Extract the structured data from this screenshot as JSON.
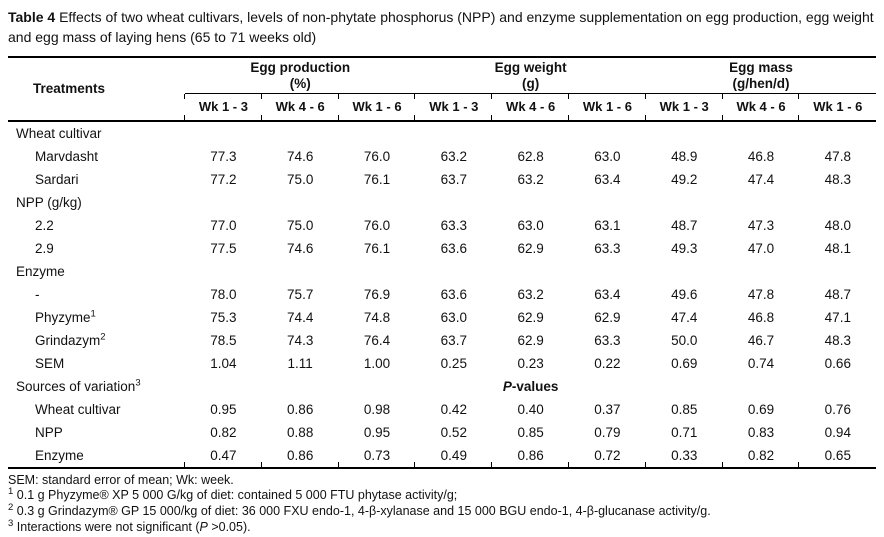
{
  "title": {
    "label": "Table 4",
    "text": " Effects of two wheat cultivars, levels of non-phytate phosphorus (NPP) and enzyme supplementation on egg production, egg weight and egg mass of laying hens (65 to 71 weeks old)"
  },
  "table": {
    "treatments_header": "Treatments",
    "groups": [
      {
        "name": "Egg production",
        "unit": "(%)"
      },
      {
        "name": "Egg weight",
        "unit": "(g)"
      },
      {
        "name": "Egg mass",
        "unit": "(g/hen/d)"
      }
    ],
    "subheaders": [
      "Wk 1 - 3",
      "Wk 4 - 6",
      "Wk 1 - 6",
      "Wk 1 - 3",
      "Wk 4 - 6",
      "Wk 1 - 6",
      "Wk 1 - 3",
      "Wk 4 - 6",
      "Wk 1 - 6"
    ],
    "rows": [
      {
        "type": "group",
        "label": "Wheat cultivar",
        "sup": ""
      },
      {
        "type": "item",
        "label": "Marvdasht",
        "sup": "",
        "values": [
          "77.3",
          "74.6",
          "76.0",
          "63.2",
          "62.8",
          "63.0",
          "48.9",
          "46.8",
          "47.8"
        ]
      },
      {
        "type": "item",
        "label": "Sardari",
        "sup": "",
        "values": [
          "77.2",
          "75.0",
          "76.1",
          "63.7",
          "63.2",
          "63.4",
          "49.2",
          "47.4",
          "48.3"
        ]
      },
      {
        "type": "group",
        "label": "NPP (g/kg)",
        "sup": ""
      },
      {
        "type": "item",
        "label": "2.2",
        "sup": "",
        "values": [
          "77.0",
          "75.0",
          "76.0",
          "63.3",
          "63.0",
          "63.1",
          "48.7",
          "47.3",
          "48.0"
        ]
      },
      {
        "type": "item",
        "label": "2.9",
        "sup": "",
        "values": [
          "77.5",
          "74.6",
          "76.1",
          "63.6",
          "62.9",
          "63.3",
          "49.3",
          "47.0",
          "48.1"
        ]
      },
      {
        "type": "group",
        "label": "Enzyme",
        "sup": ""
      },
      {
        "type": "item",
        "label": "-",
        "sup": "",
        "values": [
          "78.0",
          "75.7",
          "76.9",
          "63.6",
          "63.2",
          "63.4",
          "49.6",
          "47.8",
          "48.7"
        ]
      },
      {
        "type": "item",
        "label": "Phyzyme",
        "sup": "1",
        "values": [
          "75.3",
          "74.4",
          "74.8",
          "63.0",
          "62.9",
          "62.9",
          "47.4",
          "46.8",
          "47.1"
        ]
      },
      {
        "type": "item",
        "label": "Grindazym",
        "sup": "2",
        "values": [
          "78.5",
          "74.3",
          "76.4",
          "63.7",
          "62.9",
          "63.3",
          "50.0",
          "46.7",
          "48.3"
        ]
      },
      {
        "type": "item",
        "label": "SEM",
        "sup": "",
        "values": [
          "1.04",
          "1.11",
          "1.00",
          "0.25",
          "0.23",
          "0.22",
          "0.69",
          "0.74",
          "0.66"
        ]
      },
      {
        "type": "sources",
        "label": "Sources of variation",
        "sup": "3",
        "banner": [
          {
            "style": "bolditalic",
            "text": "P"
          },
          {
            "style": "bold",
            "text": "-values"
          }
        ]
      },
      {
        "type": "item",
        "label": "Wheat cultivar",
        "sup": "",
        "values": [
          "0.95",
          "0.86",
          "0.98",
          "0.42",
          "0.40",
          "0.37",
          "0.85",
          "0.69",
          "0.76"
        ]
      },
      {
        "type": "item",
        "label": "NPP",
        "sup": "",
        "values": [
          "0.82",
          "0.88",
          "0.95",
          "0.52",
          "0.85",
          "0.79",
          "0.71",
          "0.83",
          "0.94"
        ]
      },
      {
        "type": "item",
        "label": "Enzyme",
        "sup": "",
        "values": [
          "0.47",
          "0.86",
          "0.73",
          "0.49",
          "0.86",
          "0.72",
          "0.33",
          "0.82",
          "0.65"
        ]
      }
    ]
  },
  "footnotes": [
    {
      "sup": "",
      "segments": [
        {
          "style": "normal",
          "text": "SEM: standard error of mean; Wk: week."
        }
      ]
    },
    {
      "sup": "1",
      "segments": [
        {
          "style": "normal",
          "text": "0.1 g Phyzyme® XP 5 000 G/kg of diet: contained 5 000 FTU phytase activity/g;"
        }
      ]
    },
    {
      "sup": "2",
      "segments": [
        {
          "style": "normal",
          "text": "0.3 g Grindazym® GP 15 000/kg of diet: 36 000 FXU endo-1, 4-β-xylanase and 15 000 BGU endo-1, 4-β-glucanase activity/g."
        }
      ]
    },
    {
      "sup": "3",
      "segments": [
        {
          "style": "normal",
          "text": "Interactions were not significant ("
        },
        {
          "style": "italic",
          "text": "P"
        },
        {
          "style": "normal",
          "text": " >0.05)."
        }
      ]
    }
  ]
}
